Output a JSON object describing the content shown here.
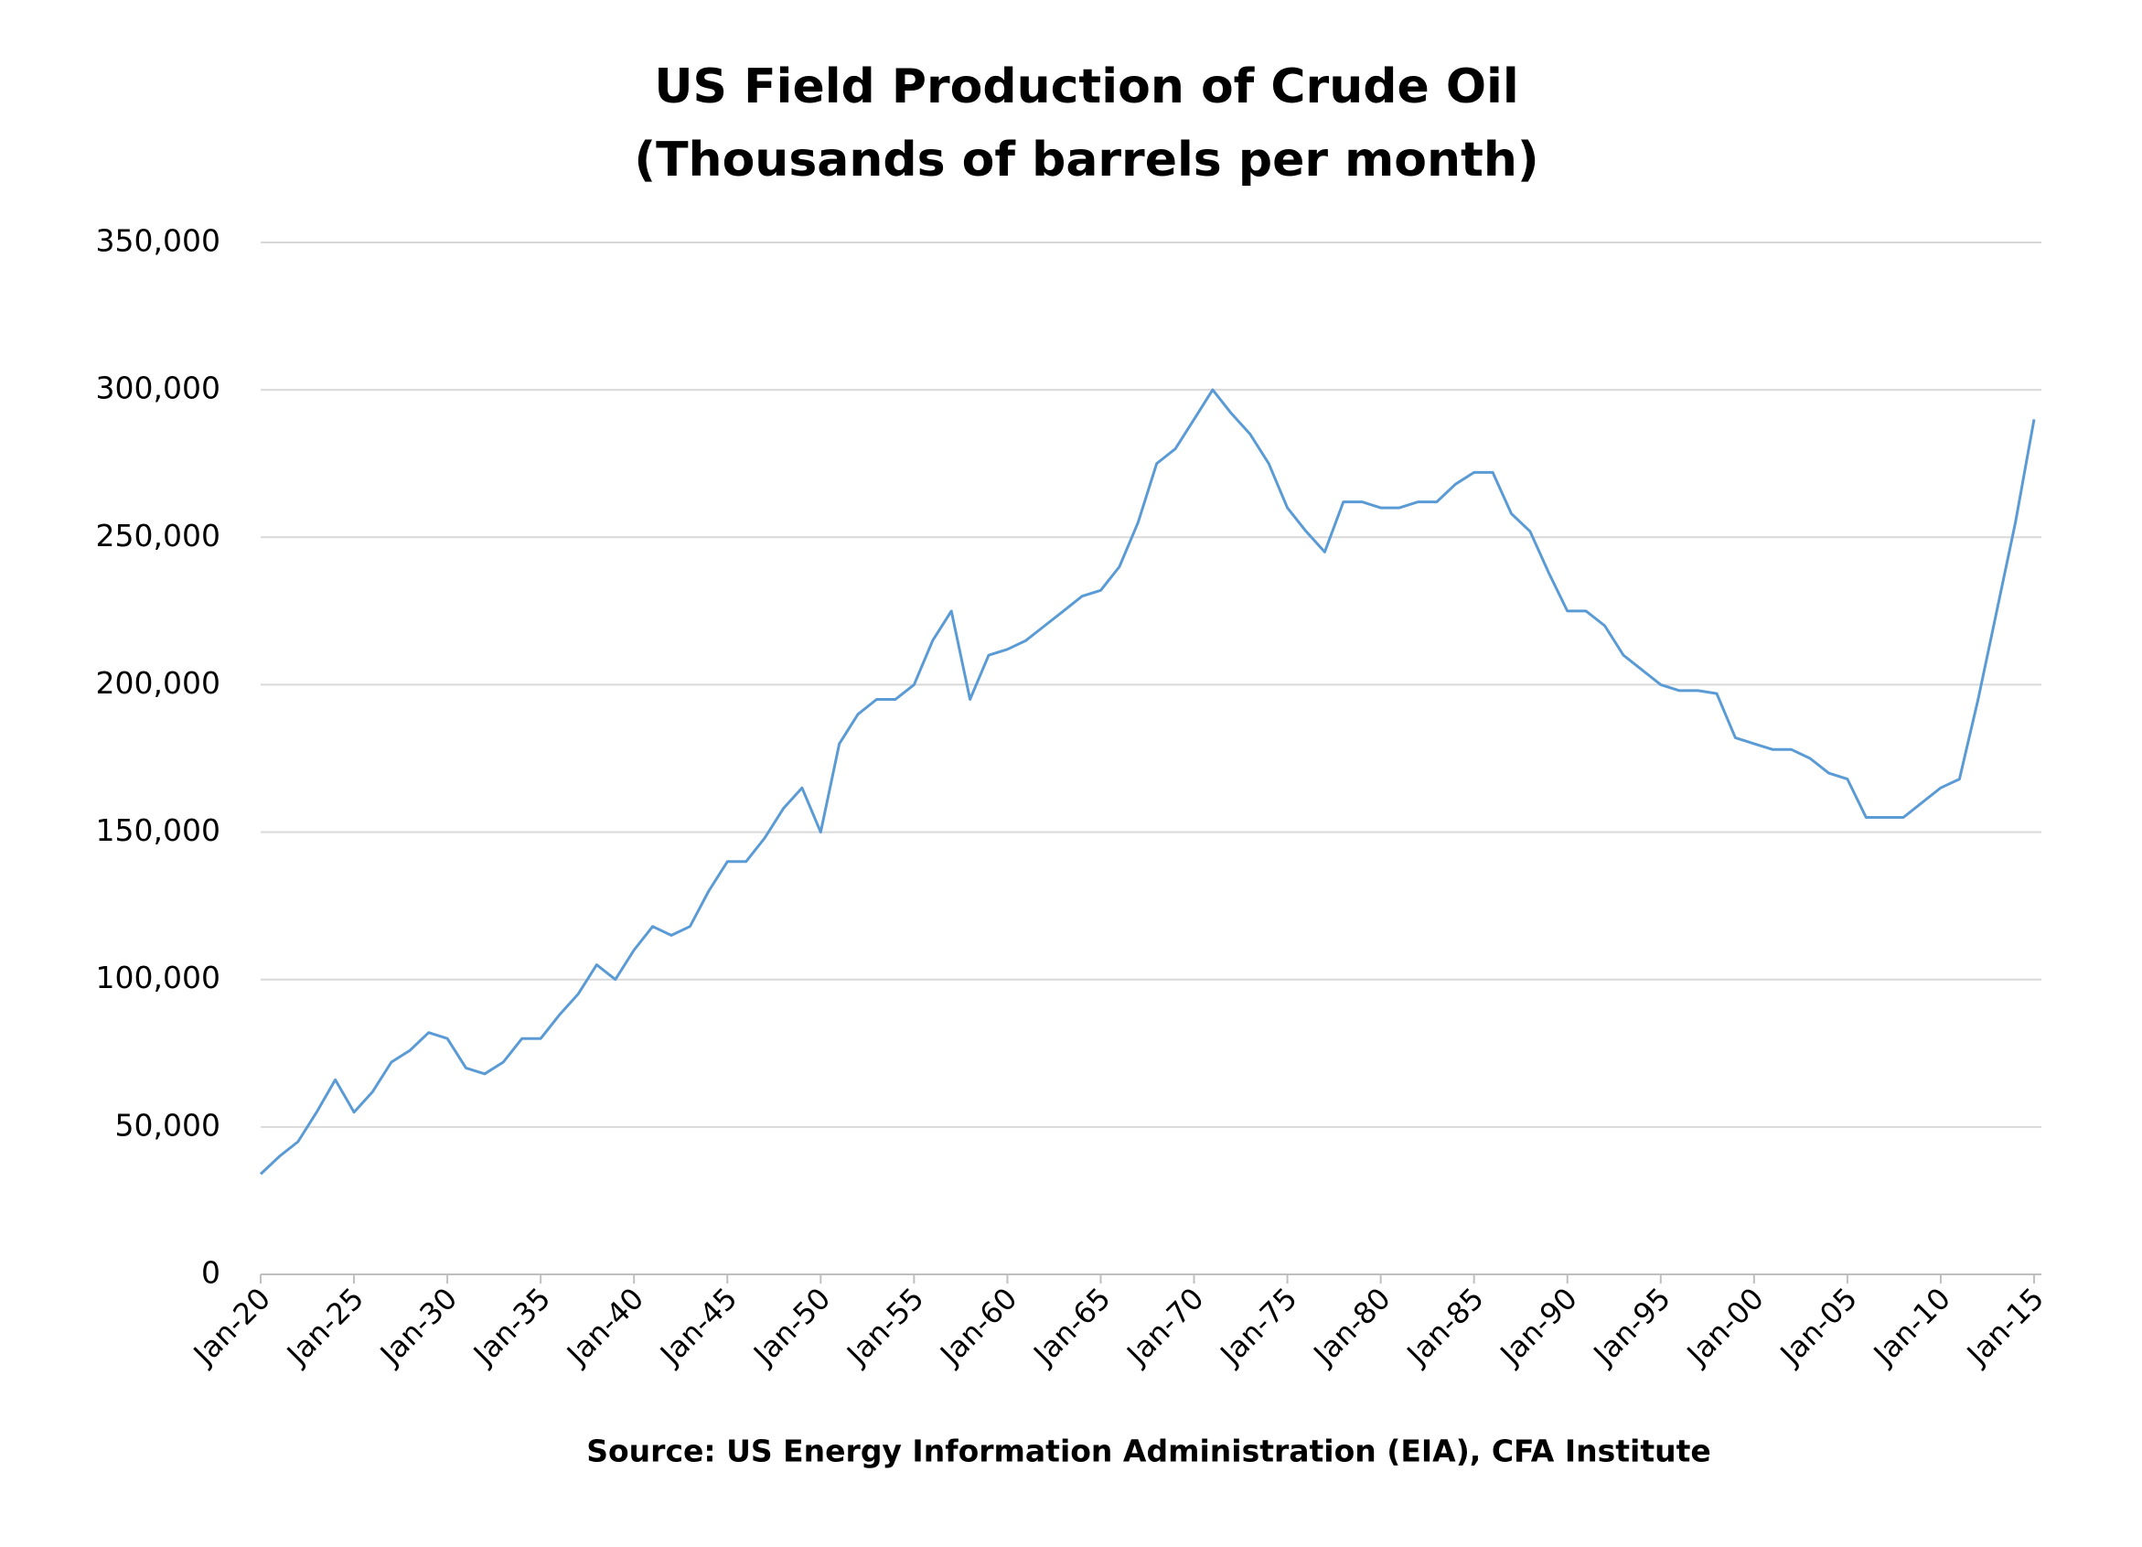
{
  "chart_data": {
    "type": "line",
    "title": "US Field Production of Crude Oil",
    "subtitle": "(Thousands of barrels per month)",
    "source": "Source: US Energy Information Administration (EIA), CFA Institute",
    "categories": [
      "Jan-20",
      null,
      null,
      null,
      null,
      "Jan-25",
      null,
      null,
      null,
      null,
      "Jan-30",
      null,
      null,
      null,
      null,
      "Jan-35",
      null,
      null,
      null,
      null,
      "Jan-40",
      null,
      null,
      null,
      null,
      "Jan-45",
      null,
      null,
      null,
      null,
      "Jan-50",
      null,
      null,
      null,
      null,
      "Jan-55",
      null,
      null,
      null,
      null,
      "Jan-60",
      null,
      null,
      null,
      null,
      "Jan-65",
      null,
      null,
      null,
      null,
      "Jan-70",
      null,
      null,
      null,
      null,
      "Jan-75",
      null,
      null,
      null,
      null,
      "Jan-80",
      null,
      null,
      null,
      null,
      "Jan-85",
      null,
      null,
      null,
      null,
      "Jan-90",
      null,
      null,
      null,
      null,
      "Jan-95",
      null,
      null,
      null,
      null,
      "Jan-00",
      null,
      null,
      null,
      null,
      "Jan-05",
      null,
      null,
      null,
      null,
      "Jan-10",
      null,
      null,
      null,
      null,
      "Jan-15"
    ],
    "series": [
      {
        "color": "#5b9bd5",
        "values": [
          34000,
          40000,
          45000,
          55000,
          66000,
          55000,
          62000,
          72000,
          76000,
          82000,
          80000,
          70000,
          68000,
          72000,
          80000,
          80000,
          88000,
          95000,
          105000,
          100000,
          110000,
          118000,
          115000,
          118000,
          130000,
          140000,
          140000,
          148000,
          158000,
          165000,
          150000,
          180000,
          190000,
          195000,
          195000,
          200000,
          215000,
          225000,
          195000,
          210000,
          212000,
          215000,
          220000,
          225000,
          230000,
          232000,
          240000,
          255000,
          275000,
          280000,
          290000,
          300000,
          292000,
          285000,
          275000,
          260000,
          252000,
          245000,
          262000,
          262000,
          260000,
          260000,
          262000,
          262000,
          268000,
          272000,
          272000,
          258000,
          252000,
          238000,
          225000,
          225000,
          220000,
          210000,
          205000,
          200000,
          198000,
          198000,
          197000,
          182000,
          180000,
          178000,
          178000,
          175000,
          170000,
          168000,
          155000,
          155000,
          155000,
          160000,
          165000,
          168000,
          195000,
          225000,
          255000,
          290000
        ]
      }
    ],
    "ylim": [
      0,
      350000
    ],
    "yticks": [
      0,
      {
        "value": 50000,
        "label": "50,000"
      },
      {
        "value": 100000,
        "label": "100,000"
      },
      {
        "value": 150000,
        "label": "150,000"
      },
      {
        "value": 200000,
        "label": "200,000"
      },
      {
        "value": 250000,
        "label": "250,000"
      },
      {
        "value": 300000,
        "label": "300,000"
      },
      {
        "value": 350000,
        "label": "350,000"
      }
    ],
    "grid": true
  }
}
